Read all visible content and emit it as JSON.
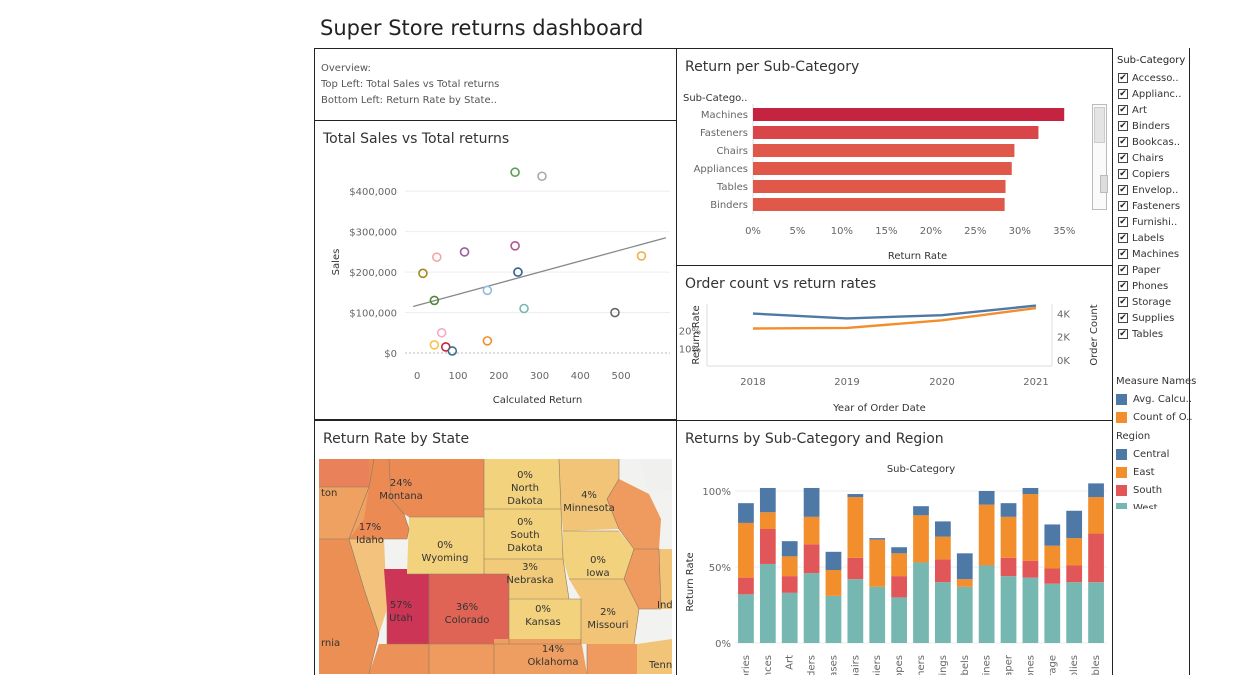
{
  "dashboard_title": "Super Store returns dashboard",
  "overview": {
    "line1": "Overview:",
    "line2": "Top Left: Total Sales vs Total returns",
    "line3": "Bottom Left: Return Rate by State.."
  },
  "scatter_title": "Total Sales vs Total returns",
  "bar_title": "Return per Sub-Category",
  "line_title": "Order count vs return rates",
  "map_title": "Return Rate by State",
  "stack_title": "Returns by Sub-Category and Region",
  "colors": {
    "central": "#4e79a7",
    "east": "#f28e2b",
    "south": "#e15759",
    "west": "#76b7b2",
    "bar_dark": "#c42440",
    "bar_mid": "#d9464a",
    "bar_light": "#e0584a"
  },
  "filter": {
    "title": "Sub-Category",
    "items": [
      "Accesso..",
      "Applianc..",
      "Art",
      "Binders",
      "Bookcas..",
      "Chairs",
      "Copiers",
      "Envelop..",
      "Fasteners",
      "Furnishi..",
      "Labels",
      "Machines",
      "Paper",
      "Phones",
      "Storage",
      "Supplies",
      "Tables"
    ],
    "check": "✔"
  },
  "measure_legend": {
    "title": "Measure Names",
    "items": [
      {
        "label": "Avg. Calcu..",
        "color": "#4e79a7"
      },
      {
        "label": "Count of O..",
        "color": "#f28e2b"
      }
    ]
  },
  "region_legend": {
    "title": "Region",
    "items": [
      {
        "label": "Central",
        "color": "#4e79a7"
      },
      {
        "label": "East",
        "color": "#f28e2b"
      },
      {
        "label": "South",
        "color": "#e15759"
      },
      {
        "label": "West",
        "color": "#76b7b2"
      }
    ]
  },
  "map": {
    "states": [
      {
        "name": "Montana",
        "value": "24%"
      },
      {
        "name": "North Dakota",
        "value": "0%"
      },
      {
        "name": "Minnesota",
        "value": "4%"
      },
      {
        "name": "Idaho",
        "value": "17%"
      },
      {
        "name": "Wyoming",
        "value": "0%"
      },
      {
        "name": "South Dakota",
        "value": "0%"
      },
      {
        "name": "Nebraska",
        "value": "3%"
      },
      {
        "name": "Iowa",
        "value": "0%"
      },
      {
        "name": "Utah",
        "value": "57%"
      },
      {
        "name": "Colorado",
        "value": "36%"
      },
      {
        "name": "Kansas",
        "value": "0%"
      },
      {
        "name": "Missouri",
        "value": "2%"
      },
      {
        "name": "Oklahoma",
        "value": "14%"
      }
    ],
    "partial_labels": [
      "ton",
      "rnia",
      "Tenn",
      "Ind"
    ]
  },
  "chart_data": [
    {
      "type": "scatter",
      "title": "Total Sales vs Total returns",
      "xlabel": "Calculated Return",
      "ylabel": "Sales",
      "xlim": [
        -30,
        620
      ],
      "ylim": [
        0,
        450000
      ],
      "x_ticks": [
        "0",
        "100",
        "200",
        "300",
        "400",
        "500"
      ],
      "y_ticks": [
        "$0",
        "$100,000",
        "$200,000",
        "$300,000",
        "$400,000"
      ],
      "trend_line": [
        [
          -10,
          115000
        ],
        [
          610,
          285000
        ]
      ],
      "points": [
        {
          "x": 240,
          "y": 447000,
          "color": "#59a14f"
        },
        {
          "x": 306,
          "y": 437000,
          "color": "#aaaaaa"
        },
        {
          "x": 240,
          "y": 265000,
          "color": "#b0568f"
        },
        {
          "x": 116,
          "y": 250000,
          "color": "#9a5fa0"
        },
        {
          "x": 48,
          "y": 237000,
          "color": "#f6a5a5"
        },
        {
          "x": 550,
          "y": 240000,
          "color": "#f0b04a"
        },
        {
          "x": 14,
          "y": 197000,
          "color": "#a08a1a"
        },
        {
          "x": 247,
          "y": 200000,
          "color": "#35608a"
        },
        {
          "x": 172,
          "y": 155000,
          "color": "#8fbde0"
        },
        {
          "x": 42,
          "y": 130000,
          "color": "#4f8a3a"
        },
        {
          "x": 262,
          "y": 110000,
          "color": "#76b7b2"
        },
        {
          "x": 485,
          "y": 100000,
          "color": "#666666"
        },
        {
          "x": 60,
          "y": 50000,
          "color": "#f7a8c8"
        },
        {
          "x": 172,
          "y": 30000,
          "color": "#f28e2b"
        },
        {
          "x": 42,
          "y": 20000,
          "color": "#f4c542"
        },
        {
          "x": 70,
          "y": 15000,
          "color": "#c42440"
        },
        {
          "x": 86,
          "y": 5000,
          "color": "#3a6f8a"
        }
      ]
    },
    {
      "type": "bar",
      "title": "Return per Sub-Category",
      "header": "Sub-Catego..",
      "xlabel": "Return Rate",
      "categories": [
        "Machines",
        "Fasteners",
        "Chairs",
        "Appliances",
        "Tables",
        "Binders"
      ],
      "values": [
        35.0,
        32.1,
        29.4,
        29.1,
        28.4,
        28.3
      ],
      "xlim": [
        0,
        37
      ],
      "x_ticks": [
        "0%",
        "5%",
        "10%",
        "15%",
        "20%",
        "25%",
        "30%",
        "35%"
      ]
    },
    {
      "type": "line",
      "title": "Order count vs return rates",
      "xlabel": "Year of Order Date",
      "ylabel_left": "Return Rate",
      "ylabel_right": "Order Count",
      "x": [
        "2018",
        "2019",
        "2020",
        "2021"
      ],
      "left_ticks": [
        "10%",
        "20%"
      ],
      "right_ticks": [
        "0K",
        "2K",
        "4K"
      ],
      "series": [
        {
          "name": "Avg. Calcu..",
          "axis": "left",
          "values": [
            29,
            26,
            28,
            34
          ],
          "ylim": [
            0,
            35
          ]
        },
        {
          "name": "Count of O..",
          "axis": "right",
          "values": [
            2700,
            2750,
            3400,
            4450
          ],
          "ylim": [
            0,
            4800
          ]
        }
      ]
    },
    {
      "type": "bar",
      "stacked": true,
      "title": "Returns by Sub-Category and Region",
      "header": "Sub-Category",
      "ylabel": "Return Rate",
      "y_ticks": [
        "0%",
        "50%",
        "100%"
      ],
      "ylim": [
        0,
        105
      ],
      "categories": [
        "Accessories",
        "Appliances",
        "Art",
        "Binders",
        "Bookcases",
        "Chairs",
        "Copiers",
        "Envelopes",
        "Fasteners",
        "Furnishings",
        "Labels",
        "Machines",
        "Paper",
        "Phones",
        "Storage",
        "Supplies",
        "Tables"
      ],
      "tick_labels": [
        "ories",
        "ances",
        "Art",
        "iders",
        "cases",
        "hairs",
        "piers",
        "opes",
        "eners",
        "nings",
        "abels",
        "hines",
        "aper",
        "ones",
        "orage",
        "plies",
        "ables"
      ],
      "series": [
        {
          "name": "West",
          "values": [
            32,
            52,
            33,
            46,
            31,
            42,
            37,
            30,
            53,
            40,
            37,
            51,
            44,
            43,
            39,
            40,
            40
          ]
        },
        {
          "name": "South",
          "values": [
            11,
            23,
            11,
            19,
            0,
            14,
            0,
            14,
            0,
            15,
            0,
            0,
            12,
            11,
            10,
            11,
            32
          ]
        },
        {
          "name": "East",
          "values": [
            36,
            11,
            13,
            18,
            17,
            40,
            31,
            15,
            31,
            15,
            5,
            40,
            27,
            44,
            15,
            18,
            24
          ]
        },
        {
          "name": "Central",
          "values": [
            13,
            16,
            10,
            19,
            12,
            2,
            1,
            4,
            6,
            10,
            17,
            9,
            9,
            4,
            14,
            18,
            9
          ]
        }
      ]
    }
  ]
}
